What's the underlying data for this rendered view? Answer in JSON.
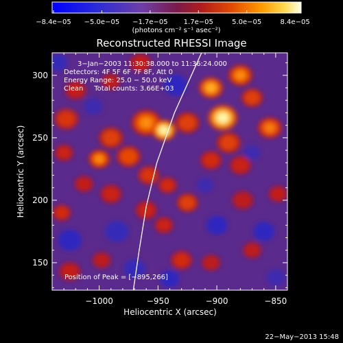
{
  "chart_data": {
    "type": "heatmap",
    "title": "Reconstructed RHESSI Image",
    "xlabel": "Heliocentric X (arcsec)",
    "ylabel": "Heliocentric Y (arcsec)",
    "xlim": [
      -1040,
      -840
    ],
    "ylim": [
      128,
      318
    ],
    "x_ticks": [
      -1000,
      -950,
      -900,
      -850
    ],
    "x_tick_labels": [
      "−1000",
      "−950",
      "−900",
      "−850"
    ],
    "y_ticks": [
      150,
      200,
      250,
      300
    ],
    "y_tick_labels": [
      "150",
      "200",
      "250",
      "300"
    ],
    "colorbar": {
      "tick_labels": [
        "−8.4e−05",
        "−5.0e−05",
        "−1.7e−05",
        "1.7e−05",
        "5.0e−05",
        "8.4e−05"
      ],
      "unit": "(photons cm⁻² s⁻¹ asec⁻²)",
      "range": [
        -8.4e-05,
        8.4e-05
      ]
    },
    "annotations": [
      "3−Jan−2003 11:30:38.000 to 11:36:24.000",
      "Detectors: 4F 5F 6F 7F 8F, Att 0",
      "Energy Range: 25.0 − 50.0 keV",
      "Clean     Total counts: 3.66E+03"
    ],
    "peak_label": "Position of Peak = [−895,266]",
    "blobs": [
      {
        "x": -945,
        "y": 256,
        "v": 1.0,
        "r": 9
      },
      {
        "x": -960,
        "y": 262,
        "v": 0.7,
        "r": 11
      },
      {
        "x": -925,
        "y": 262,
        "v": 0.55,
        "r": 9
      },
      {
        "x": -895,
        "y": 266,
        "v": 1.0,
        "r": 11
      },
      {
        "x": -905,
        "y": 290,
        "v": 0.8,
        "r": 9
      },
      {
        "x": -880,
        "y": 300,
        "v": 0.7,
        "r": 9
      },
      {
        "x": -870,
        "y": 282,
        "v": 0.55,
        "r": 8
      },
      {
        "x": -855,
        "y": 258,
        "v": 0.65,
        "r": 9
      },
      {
        "x": -890,
        "y": 246,
        "v": 0.55,
        "r": 9
      },
      {
        "x": -905,
        "y": 232,
        "v": 0.45,
        "r": 8
      },
      {
        "x": -880,
        "y": 228,
        "v": 0.4,
        "r": 8
      },
      {
        "x": -990,
        "y": 250,
        "v": 0.55,
        "r": 9
      },
      {
        "x": -1000,
        "y": 233,
        "v": 0.7,
        "r": 8
      },
      {
        "x": -975,
        "y": 235,
        "v": 0.6,
        "r": 9
      },
      {
        "x": -1028,
        "y": 265,
        "v": 0.5,
        "r": 9
      },
      {
        "x": -1020,
        "y": 288,
        "v": 0.35,
        "r": 8
      },
      {
        "x": -1030,
        "y": 238,
        "v": 0.4,
        "r": 7
      },
      {
        "x": -1013,
        "y": 213,
        "v": 0.35,
        "r": 7
      },
      {
        "x": -990,
        "y": 205,
        "v": 0.4,
        "r": 8
      },
      {
        "x": -958,
        "y": 220,
        "v": 0.5,
        "r": 8
      },
      {
        "x": -942,
        "y": 212,
        "v": 0.45,
        "r": 7
      },
      {
        "x": -960,
        "y": 192,
        "v": 0.4,
        "r": 8
      },
      {
        "x": -925,
        "y": 198,
        "v": 0.55,
        "r": 8
      },
      {
        "x": -945,
        "y": 180,
        "v": 0.4,
        "r": 7
      },
      {
        "x": -930,
        "y": 152,
        "v": 0.45,
        "r": 8
      },
      {
        "x": -905,
        "y": 150,
        "v": 0.3,
        "r": 7
      },
      {
        "x": -1032,
        "y": 190,
        "v": 0.45,
        "r": 7
      },
      {
        "x": -1025,
        "y": 143,
        "v": 0.35,
        "r": 8
      },
      {
        "x": -998,
        "y": 152,
        "v": 0.3,
        "r": 7
      },
      {
        "x": -870,
        "y": 160,
        "v": 0.3,
        "r": 7
      },
      {
        "x": -848,
        "y": 205,
        "v": 0.35,
        "r": 7
      },
      {
        "x": -878,
        "y": 200,
        "v": 0.3,
        "r": 8
      },
      {
        "x": -965,
        "y": 310,
        "v": 0.35,
        "r": 8
      },
      {
        "x": -990,
        "y": 295,
        "v": 0.3,
        "r": 7
      },
      {
        "x": -935,
        "y": 292,
        "v": -0.3,
        "r": 10
      },
      {
        "x": -1025,
        "y": 168,
        "v": -0.3,
        "r": 10
      },
      {
        "x": -985,
        "y": 175,
        "v": -0.25,
        "r": 10
      },
      {
        "x": -900,
        "y": 180,
        "v": -0.3,
        "r": 9
      },
      {
        "x": -860,
        "y": 175,
        "v": -0.3,
        "r": 9
      },
      {
        "x": -940,
        "y": 137,
        "v": -0.3,
        "r": 8
      },
      {
        "x": -970,
        "y": 145,
        "v": -0.25,
        "r": 9
      },
      {
        "x": -850,
        "y": 138,
        "v": -0.2,
        "r": 8
      },
      {
        "x": -1035,
        "y": 310,
        "v": -0.25,
        "r": 8
      },
      {
        "x": -870,
        "y": 238,
        "v": -0.2,
        "r": 7
      },
      {
        "x": -910,
        "y": 212,
        "v": -0.2,
        "r": 7
      },
      {
        "x": -1005,
        "y": 275,
        "v": -0.2,
        "r": 8
      }
    ],
    "limb": [
      {
        "x": -913,
        "y": 318
      },
      {
        "x": -936,
        "y": 270
      },
      {
        "x": -951,
        "y": 230
      },
      {
        "x": -960,
        "y": 195
      },
      {
        "x": -966,
        "y": 160
      },
      {
        "x": -971,
        "y": 128
      }
    ],
    "footer": "22−May−2013 15:48"
  }
}
